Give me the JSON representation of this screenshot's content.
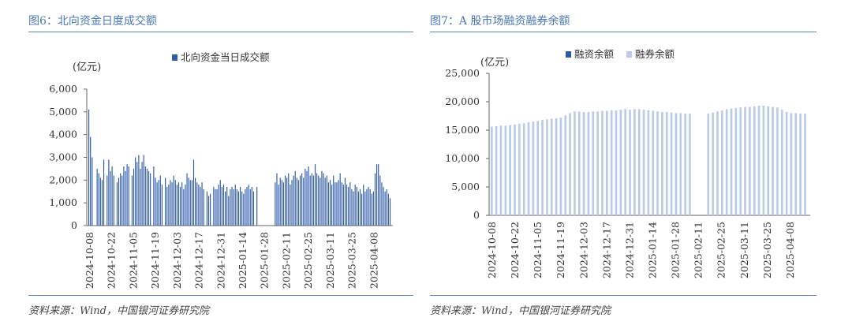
{
  "charts": [
    {
      "title": "图6：北向资金日度成交额",
      "source": "资料来源：Wind，中国银河证券研究院"
    },
    {
      "title": "图7：A 股市场融资融券余额",
      "source": "资料来源：Wind，中国银河证券研究院"
    }
  ],
  "chart_data": [
    {
      "type": "bar",
      "title": "北向资金日度成交额",
      "ylabel": "(亿元)",
      "xlabel": "",
      "ylim": [
        0,
        6000
      ],
      "yticks": [
        "0",
        "1,000",
        "2,000",
        "3,000",
        "4,000",
        "5,000",
        "6,000"
      ],
      "xticks": [
        "2024-10-08",
        "2024-10-22",
        "2024-11-05",
        "2024-11-19",
        "2024-12-03",
        "2024-12-17",
        "2024-12-31",
        "2025-01-14",
        "2025-01-28",
        "2025-02-11",
        "2025-02-25",
        "2025-03-11",
        "2025-03-25",
        "2025-04-08"
      ],
      "series": [
        {
          "name": "北向资金当日成交额",
          "color": "#2e5aa8",
          "values": [
            5100,
            3900,
            3000,
            0,
            0,
            2500,
            2300,
            2100,
            2000,
            2900,
            0,
            2200,
            2900,
            2400,
            2600,
            2200,
            0,
            1900,
            2100,
            2300,
            2200,
            2600,
            2400,
            2700,
            2600,
            0,
            2200,
            2500,
            3000,
            2800,
            3100,
            2500,
            2800,
            3100,
            2600,
            2500,
            2400,
            2300,
            0,
            2600,
            2100,
            1900,
            2000,
            2200,
            1800,
            0,
            2100,
            1700,
            1800,
            2000,
            1900,
            2200,
            2000,
            1800,
            1900,
            1700,
            1900,
            1600,
            1800,
            2300,
            2100,
            2000,
            2000,
            2900,
            2100,
            1900,
            1800,
            1700,
            1900,
            1600,
            0,
            1500,
            1300,
            1400,
            0,
            1700,
            1600,
            1600,
            1800,
            2000,
            1700,
            1800,
            1500,
            1700,
            1300,
            1600,
            1700,
            1600,
            1800,
            1600,
            1500,
            1700,
            1500,
            1400,
            1600,
            1700,
            1800,
            1600,
            1700,
            1500,
            0,
            1700,
            0,
            0,
            0,
            0,
            0,
            0,
            0,
            0,
            0,
            0,
            1900,
            2300,
            1800,
            2100,
            2000,
            1900,
            2200,
            2100,
            2300,
            1800,
            2000,
            2200,
            2400,
            2100,
            2000,
            2200,
            2300,
            2100,
            2500,
            2400,
            2600,
            2200,
            2300,
            2200,
            2700,
            2300,
            2200,
            2100,
            2400,
            2300,
            2100,
            2200,
            1900,
            2000,
            1800,
            2200,
            1900,
            1900,
            2000,
            2300,
            1900,
            1800,
            2100,
            1800,
            1700,
            1900,
            1600,
            1500,
            1800,
            1700,
            1500,
            1600,
            1400,
            1800,
            1500,
            1600,
            1700,
            1600,
            1400,
            1500,
            2300,
            2700,
            2700,
            2200,
            1900,
            1700,
            1500,
            1600,
            1400,
            1200
          ]
        }
      ],
      "legend": "top"
    },
    {
      "type": "bar",
      "title": "A 股市场融资融券余额",
      "ylabel": "(亿元)",
      "xlabel": "",
      "ylim": [
        0,
        25000
      ],
      "yticks": [
        "0",
        "5,000",
        "10,000",
        "15,000",
        "20,000",
        "25,000"
      ],
      "xticks": [
        "2024-10-08",
        "2024-10-22",
        "2024-11-05",
        "2024-11-19",
        "2024-12-03",
        "2024-12-17",
        "2024-12-31",
        "2025-01-14",
        "2025-01-28",
        "2025-02-11",
        "2025-02-25",
        "2025-03-11",
        "2025-03-25",
        "2025-04-08"
      ],
      "series": [
        {
          "name": "融资余额",
          "color": "#2e5aa8",
          "values": []
        },
        {
          "name": "融券余额",
          "color": "#b9cbe6",
          "values": [
            15600,
            15700,
            15800,
            15800,
            15900,
            16000,
            16100,
            16200,
            16400,
            16500,
            16600,
            16800,
            16900,
            17000,
            17100,
            17200,
            17600,
            18000,
            18300,
            18300,
            18200,
            18200,
            18300,
            18300,
            18400,
            18400,
            18500,
            18500,
            18600,
            18700,
            18600,
            18700,
            18700,
            18600,
            18500,
            18400,
            18300,
            18200,
            18200,
            18100,
            18000,
            18000,
            17900,
            17900,
            0,
            0,
            0,
            17900,
            18100,
            18300,
            18500,
            18700,
            18800,
            18900,
            19000,
            19100,
            19100,
            19200,
            19300,
            19300,
            19200,
            19100,
            19000,
            18600,
            18200,
            18000,
            18000,
            17900,
            17900
          ]
        }
      ],
      "legend": "top"
    }
  ]
}
